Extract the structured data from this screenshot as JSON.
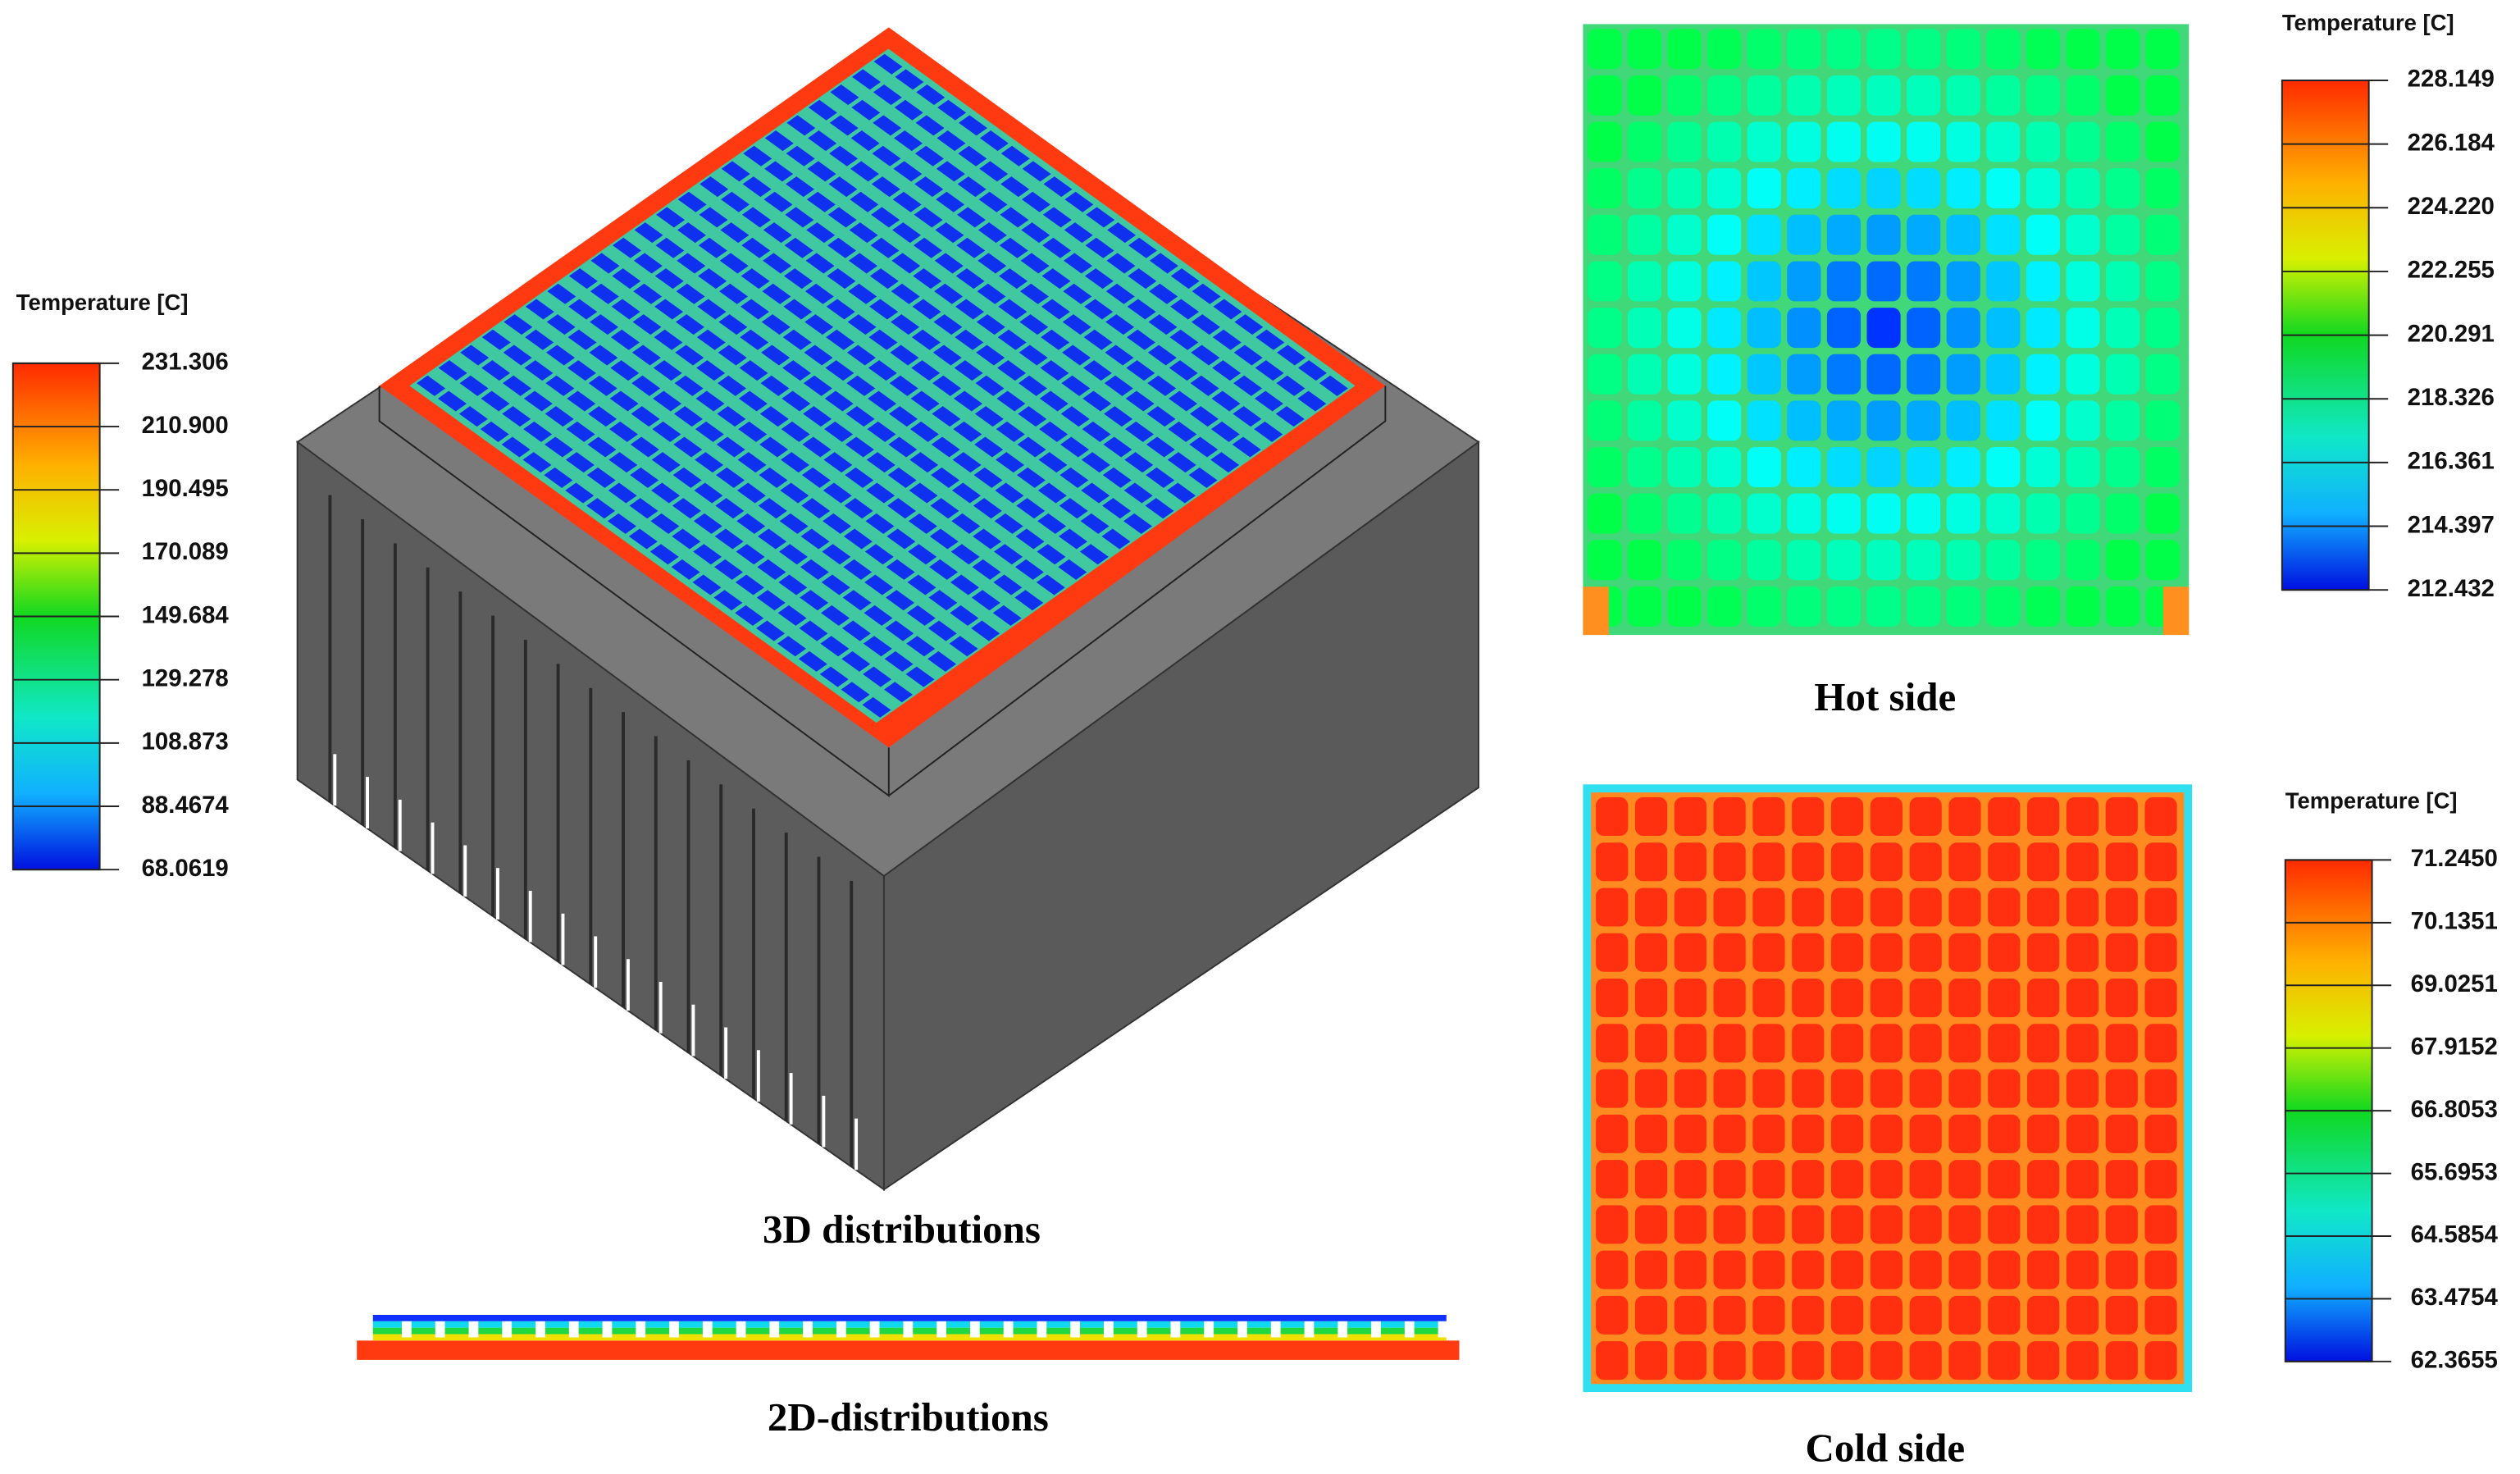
{
  "legends": [
    {
      "title": "Temperature [C]",
      "labels": [
        "231.306",
        "210.900",
        "190.495",
        "170.089",
        "149.684",
        "129.278",
        "108.873",
        "88.4674",
        "68.0619"
      ]
    },
    {
      "title": "Temperature [C]",
      "labels": [
        "228.149",
        "226.184",
        "224.220",
        "222.255",
        "220.291",
        "218.326",
        "216.361",
        "214.397",
        "212.432"
      ]
    },
    {
      "title": "Temperature [C]",
      "labels": [
        "71.2450",
        "70.1351",
        "69.0251",
        "67.9152",
        "66.8053",
        "65.6953",
        "64.5854",
        "63.4754",
        "62.3655"
      ]
    }
  ],
  "captions": {
    "distributions_3d": "3D distributions",
    "distributions_2d": "2D-distributions",
    "hot_side": "Hot side",
    "cold_side": "Cold side"
  }
}
